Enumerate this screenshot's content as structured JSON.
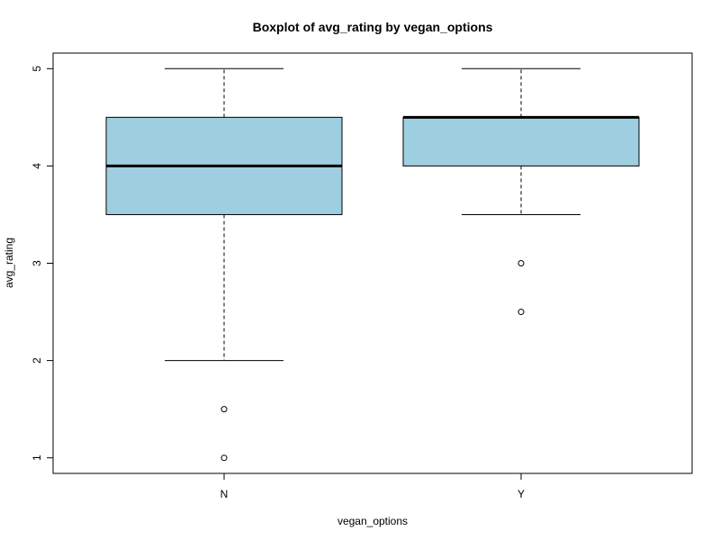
{
  "chart_data": {
    "type": "boxplot",
    "title": "Boxplot of avg_rating by vegan_options",
    "xlabel": "vegan_options",
    "ylabel": "avg_rating",
    "categories": [
      "N",
      "Y"
    ],
    "ylim": [
      0.84,
      5.16
    ],
    "yticks": [
      "1",
      "2",
      "3",
      "4",
      "5"
    ],
    "grid": false,
    "legend": "none",
    "box_fill": "#9ECFE0",
    "boxes": [
      {
        "category": "N",
        "whisker_low": 2.0,
        "q1": 3.5,
        "median": 4.0,
        "q3": 4.5,
        "whisker_high": 5.0,
        "outliers": [
          1.5,
          1.0
        ]
      },
      {
        "category": "Y",
        "whisker_low": 3.5,
        "q1": 4.0,
        "median": 4.5,
        "q3": 4.5,
        "whisker_high": 5.0,
        "outliers": [
          3.0,
          2.5
        ]
      }
    ]
  }
}
